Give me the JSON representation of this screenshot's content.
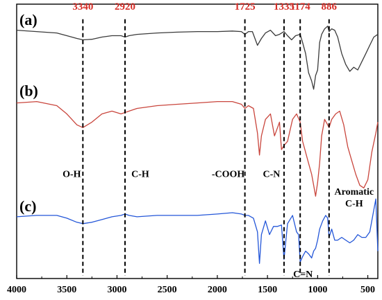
{
  "chart_data": {
    "type": "line",
    "title": "",
    "xlabel": "",
    "ylabel": "",
    "xlim": [
      4000,
      400
    ],
    "ylim": [
      0,
      10
    ],
    "x_ticks": [
      4000,
      3500,
      3000,
      2500,
      2000,
      1500,
      1000,
      500
    ],
    "panel_labels": [
      "(a)",
      "(b)",
      "(c)"
    ],
    "peak_markers": [
      {
        "x": 3340,
        "label": "3340"
      },
      {
        "x": 2920,
        "label": "2920"
      },
      {
        "x": 1725,
        "label": "1725"
      },
      {
        "x": 1335,
        "label": "1335"
      },
      {
        "x": 1174,
        "label": "1174"
      },
      {
        "x": 886,
        "label": "886"
      }
    ],
    "assignments": [
      {
        "lines": [
          "O-H"
        ],
        "x": 3340
      },
      {
        "lines": [
          "C-H"
        ],
        "x": 2920
      },
      {
        "lines": [
          "-COOH"
        ],
        "x": 1725
      },
      {
        "lines": [
          "C-N"
        ],
        "x": 1335
      },
      {
        "lines": [
          "C=N"
        ],
        "x": 1174
      },
      {
        "lines": [
          "Aromatic",
          "C-H"
        ],
        "x": 886
      }
    ],
    "series": [
      {
        "color": "#3a3a3a",
        "x": [
          4000,
          3800,
          3600,
          3500,
          3400,
          3340,
          3250,
          3150,
          3050,
          2960,
          2920,
          2880,
          2800,
          2600,
          2400,
          2200,
          2000,
          1850,
          1760,
          1725,
          1690,
          1650,
          1600,
          1560,
          1520,
          1470,
          1420,
          1380,
          1335,
          1300,
          1260,
          1220,
          1174,
          1150,
          1120,
          1090,
          1060,
          1040,
          1020,
          1000,
          980,
          960,
          930,
          900,
          886,
          860,
          830,
          800,
          760,
          720,
          680,
          640,
          600,
          560,
          520,
          480,
          440,
          400
        ],
        "y": [
          9.05,
          9.0,
          8.95,
          8.85,
          8.75,
          8.7,
          8.72,
          8.8,
          8.85,
          8.85,
          8.8,
          8.85,
          8.9,
          8.95,
          8.98,
          9.0,
          9.0,
          9.02,
          9.0,
          8.9,
          9.0,
          9.0,
          8.5,
          8.75,
          8.95,
          9.05,
          8.85,
          8.9,
          9.0,
          8.85,
          8.7,
          8.85,
          8.9,
          8.6,
          8.2,
          7.5,
          7.2,
          6.9,
          7.4,
          7.6,
          8.6,
          8.9,
          9.1,
          9.2,
          9.0,
          9.1,
          9.05,
          8.8,
          8.2,
          7.8,
          7.55,
          7.7,
          7.6,
          7.9,
          8.2,
          8.5,
          8.8,
          8.9
        ]
      },
      {
        "color": "#c9453c",
        "x": [
          4000,
          3800,
          3600,
          3500,
          3400,
          3340,
          3250,
          3150,
          3050,
          2960,
          2920,
          2880,
          2800,
          2600,
          2400,
          2200,
          2000,
          1850,
          1760,
          1725,
          1690,
          1640,
          1600,
          1580,
          1560,
          1520,
          1470,
          1430,
          1400,
          1380,
          1360,
          1335,
          1300,
          1250,
          1210,
          1174,
          1150,
          1120,
          1090,
          1060,
          1040,
          1020,
          1000,
          980,
          960,
          930,
          900,
          886,
          860,
          820,
          780,
          740,
          700,
          660,
          620,
          580,
          540,
          500,
          460,
          420,
          400
        ],
        "y": [
          6.4,
          6.45,
          6.3,
          6.0,
          5.6,
          5.5,
          5.7,
          6.0,
          6.1,
          6.0,
          6.05,
          6.1,
          6.2,
          6.3,
          6.35,
          6.4,
          6.45,
          6.45,
          6.35,
          6.2,
          6.3,
          6.2,
          5.3,
          4.5,
          5.2,
          5.8,
          6.0,
          5.2,
          5.5,
          5.7,
          4.7,
          4.85,
          5.0,
          5.8,
          6.0,
          5.7,
          5.0,
          4.6,
          4.2,
          3.8,
          3.4,
          3.0,
          3.5,
          4.2,
          5.2,
          5.8,
          5.6,
          5.5,
          5.8,
          6.0,
          6.1,
          5.6,
          4.8,
          4.3,
          3.8,
          3.4,
          3.3,
          3.6,
          4.6,
          5.3,
          5.7
        ]
      },
      {
        "color": "#2356d8",
        "x": [
          4000,
          3800,
          3600,
          3500,
          3400,
          3340,
          3250,
          3150,
          3050,
          2960,
          2920,
          2880,
          2800,
          2600,
          2400,
          2200,
          2000,
          1850,
          1760,
          1725,
          1690,
          1640,
          1600,
          1580,
          1560,
          1520,
          1480,
          1440,
          1400,
          1360,
          1335,
          1300,
          1250,
          1210,
          1190,
          1174,
          1150,
          1120,
          1090,
          1060,
          1040,
          1020,
          1000,
          980,
          950,
          920,
          900,
          886,
          860,
          830,
          800,
          760,
          720,
          680,
          640,
          600,
          560,
          520,
          480,
          440,
          420,
          400
        ],
        "y": [
          2.25,
          2.3,
          2.3,
          2.2,
          2.05,
          2.0,
          2.05,
          2.15,
          2.25,
          2.3,
          2.35,
          2.3,
          2.25,
          2.3,
          2.3,
          2.3,
          2.35,
          2.4,
          2.35,
          2.3,
          2.3,
          2.2,
          1.7,
          0.55,
          1.6,
          2.1,
          1.6,
          1.9,
          1.9,
          1.95,
          0.7,
          2.0,
          2.3,
          1.7,
          1.6,
          0.6,
          0.8,
          1.0,
          0.9,
          0.75,
          1.0,
          1.1,
          1.4,
          1.8,
          2.1,
          2.3,
          2.2,
          1.5,
          1.8,
          1.4,
          1.4,
          1.5,
          1.4,
          1.3,
          1.4,
          1.6,
          1.5,
          1.5,
          1.7,
          2.5,
          2.9,
          1.0
        ]
      }
    ]
  }
}
